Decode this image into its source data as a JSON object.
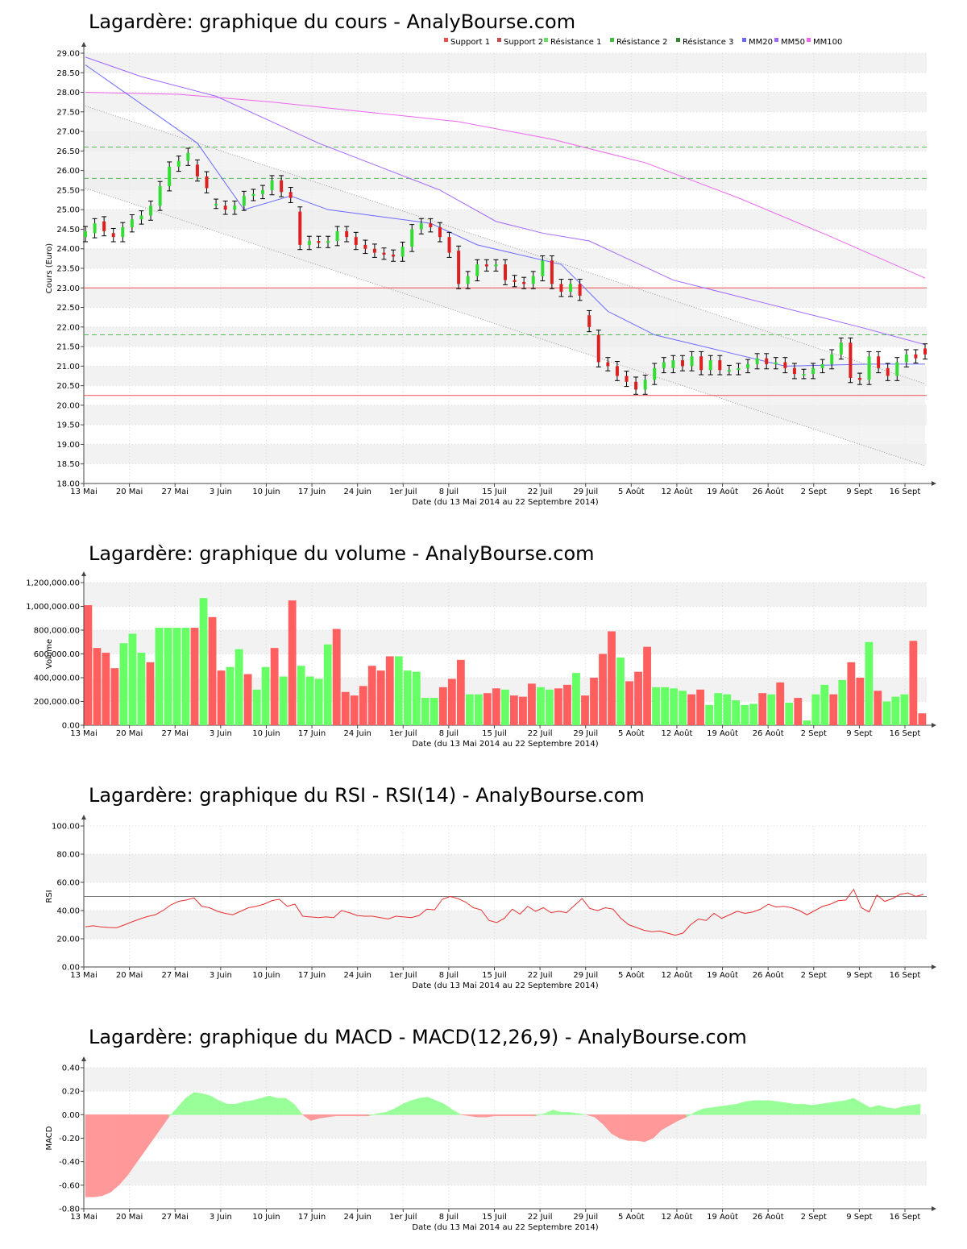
{
  "colors": {
    "up": "#66ff66",
    "down": "#ff5f5f",
    "down_candle": "#e02020",
    "up_candle": "#33dd33",
    "macd_pos": "#99ff99",
    "macd_neg": "#ff9999",
    "mm20": "#6a6aff",
    "mm50": "#a066ff",
    "mm100": "#ee66ee",
    "support": "#e85050",
    "resistance": "#55bb55",
    "rsi_line": "#e83030",
    "band_stripe": "#f2f2f2"
  },
  "x_axis": {
    "ticks": [
      "13 Mai",
      "20 Mai",
      "27 Mai",
      "3 Juin",
      "10 Juin",
      "17 Juin",
      "24 Juin",
      "1er Juil",
      "8 Juil",
      "15 Juil",
      "22 Juil",
      "29 Juil",
      "5 Août",
      "12 Août",
      "19 Août",
      "26 Août",
      "2 Sept",
      "9 Sept",
      "16 Sept"
    ],
    "label": "Date (du 13 Mai 2014 au 22 Septembre 2014)"
  },
  "chart_data": [
    {
      "id": "price",
      "type": "candlestick",
      "title": "Lagardère: graphique du cours - AnalyBourse.com",
      "ylabel": "Cours (Euro)",
      "ylim": [
        18,
        29
      ],
      "yticks": [
        "18.00",
        "18.50",
        "19.00",
        "19.50",
        "20.00",
        "20.50",
        "21.00",
        "21.50",
        "22.00",
        "22.50",
        "23.00",
        "23.50",
        "24.00",
        "24.50",
        "25.00",
        "25.50",
        "26.00",
        "26.50",
        "27.00",
        "27.50",
        "28.00",
        "28.50",
        "29.00"
      ],
      "legend": [
        "Support 1",
        "Support 2",
        "Résistance 1",
        "Résistance 2",
        "Résistance 3",
        "MM20",
        "MM50",
        "MM100"
      ],
      "legend_position": "top-right",
      "support_levels": [
        23.0,
        20.25
      ],
      "resistance_levels": [
        26.6,
        25.8,
        21.8
      ],
      "closes": [
        24.45,
        24.65,
        24.45,
        24.3,
        24.55,
        24.75,
        24.85,
        25.1,
        25.6,
        26.1,
        26.25,
        26.45,
        25.85,
        25.55,
        25.15,
        25.0,
        25.1,
        25.35,
        25.4,
        25.5,
        25.75,
        25.45,
        25.3,
        24.1,
        24.2,
        24.15,
        24.2,
        24.45,
        24.3,
        24.1,
        24.0,
        23.9,
        23.85,
        23.8,
        24.05,
        24.5,
        24.65,
        24.55,
        24.3,
        23.9,
        23.1,
        23.3,
        23.6,
        23.55,
        23.6,
        23.2,
        23.15,
        23.1,
        23.3,
        23.7,
        23.1,
        22.9,
        23.1,
        22.8,
        22.0,
        21.1,
        21.0,
        20.75,
        20.6,
        20.4,
        20.65,
        20.95,
        21.1,
        21.15,
        21.0,
        21.25,
        20.9,
        21.15,
        20.9,
        20.9,
        20.95,
        21.05,
        21.2,
        21.05,
        21.1,
        20.95,
        20.8,
        20.8,
        20.95,
        21.05,
        21.3,
        21.6,
        20.7,
        20.65,
        21.25,
        20.95,
        20.75,
        21.1,
        21.3,
        21.2,
        21.3
      ],
      "opens": [
        24.3,
        24.4,
        24.7,
        24.4,
        24.3,
        24.55,
        24.75,
        24.85,
        25.1,
        25.6,
        26.1,
        26.25,
        26.15,
        25.85,
        25.15,
        25.1,
        25.0,
        25.1,
        25.35,
        25.4,
        25.5,
        25.75,
        25.45,
        24.95,
        24.1,
        24.2,
        24.15,
        24.2,
        24.45,
        24.3,
        24.1,
        24.0,
        23.9,
        23.85,
        23.8,
        24.05,
        24.5,
        24.65,
        24.55,
        24.3,
        23.95,
        23.1,
        23.3,
        23.6,
        23.55,
        23.6,
        23.2,
        23.15,
        23.1,
        23.3,
        23.7,
        23.1,
        22.9,
        23.1,
        22.3,
        21.8,
        21.1,
        21.0,
        20.75,
        20.6,
        20.4,
        20.65,
        20.95,
        20.95,
        21.15,
        21.0,
        21.25,
        20.9,
        21.15,
        20.9,
        20.9,
        20.95,
        21.05,
        21.2,
        21.05,
        21.1,
        20.95,
        20.8,
        20.8,
        20.95,
        21.05,
        21.3,
        21.6,
        20.7,
        20.65,
        21.25,
        20.95,
        20.75,
        21.1,
        21.3,
        21.45
      ],
      "mm20": [
        [
          0,
          28.7
        ],
        [
          12,
          26.7
        ],
        [
          17,
          25.0
        ],
        [
          22,
          25.35
        ],
        [
          26,
          25.0
        ],
        [
          37,
          24.65
        ],
        [
          42,
          24.1
        ],
        [
          51,
          23.6
        ],
        [
          56,
          22.4
        ],
        [
          61,
          21.8
        ],
        [
          68,
          21.4
        ],
        [
          75,
          21.0
        ],
        [
          84,
          21.05
        ],
        [
          90,
          21.05
        ]
      ],
      "mm50": [
        [
          0,
          28.9
        ],
        [
          6,
          28.4
        ],
        [
          14,
          27.9
        ],
        [
          25,
          26.7
        ],
        [
          38,
          25.5
        ],
        [
          44,
          24.7
        ],
        [
          49,
          24.4
        ],
        [
          54,
          24.2
        ],
        [
          63,
          23.2
        ],
        [
          73,
          22.6
        ],
        [
          83,
          22.0
        ],
        [
          90,
          21.55
        ]
      ],
      "mm100": [
        [
          0,
          28.0
        ],
        [
          10,
          27.95
        ],
        [
          20,
          27.75
        ],
        [
          30,
          27.5
        ],
        [
          40,
          27.25
        ],
        [
          50,
          26.8
        ],
        [
          60,
          26.2
        ],
        [
          70,
          25.3
        ],
        [
          80,
          24.3
        ],
        [
          90,
          23.25
        ]
      ],
      "channel_upper": [
        [
          0,
          27.65
        ],
        [
          90,
          20.55
        ]
      ],
      "channel_lower": [
        [
          0,
          25.55
        ],
        [
          90,
          18.45
        ]
      ]
    },
    {
      "id": "volume",
      "type": "bar",
      "title": "Lagardère: graphique du volume - AnalyBourse.com",
      "ylabel": "Volume",
      "ylim": [
        0,
        1200000
      ],
      "yticks": [
        "0.00",
        "200,000.00",
        "400,000.00",
        "600,000.00",
        "800,000.00",
        "1,000,000.00",
        "1,200,000.00"
      ],
      "values": [
        1010000,
        650000,
        610000,
        480000,
        690000,
        770000,
        610000,
        530000,
        820000,
        820000,
        820000,
        820000,
        820000,
        1070000,
        910000,
        460000,
        490000,
        640000,
        430000,
        300000,
        490000,
        650000,
        410000,
        1050000,
        500000,
        410000,
        390000,
        680000,
        810000,
        280000,
        250000,
        330000,
        500000,
        460000,
        580000,
        580000,
        460000,
        450000,
        230000,
        230000,
        320000,
        390000,
        550000,
        260000,
        260000,
        270000,
        310000,
        300000,
        250000,
        240000,
        350000,
        320000,
        300000,
        310000,
        340000,
        440000,
        250000,
        400000,
        600000,
        790000,
        570000,
        370000,
        450000,
        660000,
        320000,
        320000,
        310000,
        290000,
        260000,
        300000,
        170000,
        270000,
        260000,
        210000,
        170000,
        180000,
        270000,
        260000,
        360000,
        190000,
        230000,
        40000,
        260000,
        340000,
        260000,
        380000,
        530000,
        400000,
        700000,
        290000,
        200000,
        240000,
        260000,
        710000,
        100000
      ],
      "up_flags": [
        0,
        0,
        0,
        0,
        1,
        1,
        1,
        0,
        1,
        1,
        1,
        1,
        0,
        1,
        0,
        0,
        1,
        1,
        0,
        1,
        1,
        0,
        1,
        0,
        1,
        1,
        1,
        1,
        0,
        0,
        0,
        0,
        0,
        0,
        0,
        1,
        1,
        1,
        1,
        1,
        0,
        0,
        0,
        1,
        1,
        0,
        0,
        1,
        0,
        0,
        0,
        1,
        1,
        0,
        0,
        1,
        0,
        0,
        0,
        0,
        1,
        0,
        0,
        0,
        1,
        1,
        1,
        1,
        0,
        0,
        1,
        1,
        1,
        1,
        1,
        1,
        0,
        1,
        0,
        1,
        0,
        1,
        1,
        1,
        0,
        1,
        0,
        0,
        1,
        0,
        1,
        1,
        1,
        0,
        0
      ]
    },
    {
      "id": "rsi",
      "type": "line",
      "title": "Lagardère: graphique du RSI - RSI(14) - AnalyBourse.com",
      "ylabel": "RSI",
      "ylim": [
        0,
        100
      ],
      "yticks": [
        "0.00",
        "20.00",
        "40.00",
        "60.00",
        "80.00",
        "100.00"
      ],
      "reference_level": 50,
      "values": [
        28.5,
        29.2,
        28.4,
        28.0,
        27.8,
        29.8,
        32.0,
        34.0,
        35.8,
        37.0,
        40.0,
        44.0,
        46.5,
        47.5,
        49.0,
        43.0,
        42.0,
        39.5,
        38.0,
        37.0,
        39.5,
        42.0,
        43.0,
        44.5,
        47.0,
        48.0,
        43.0,
        44.5,
        36.0,
        35.5,
        35.0,
        35.5,
        35.0,
        40.0,
        38.5,
        36.5,
        36.0,
        36.0,
        35.0,
        34.0,
        36.0,
        35.5,
        35.0,
        36.5,
        41.0,
        40.5,
        48.0,
        50.0,
        48.5,
        46.0,
        42.0,
        40.5,
        33.0,
        31.5,
        34.5,
        41.0,
        37.5,
        43.0,
        39.5,
        42.0,
        38.5,
        39.5,
        38.5,
        43.5,
        48.5,
        41.5,
        40.0,
        42.0,
        41.0,
        34.5,
        30.0,
        28.0,
        26.0,
        25.0,
        25.5,
        24.0,
        22.5,
        24.0,
        30.0,
        34.0,
        33.0,
        38.0,
        34.5,
        37.0,
        39.5,
        38.0,
        39.0,
        41.0,
        44.5,
        42.5,
        43.0,
        42.0,
        40.0,
        37.0,
        40.0,
        43.0,
        44.5,
        47.0,
        47.5,
        55.0,
        42.0,
        39.0,
        51.0,
        46.5,
        48.5,
        51.5,
        52.5,
        50.0,
        51.5
      ]
    },
    {
      "id": "macd",
      "type": "area",
      "title": "Lagardère: graphique du MACD - MACD(12,26,9) - AnalyBourse.com",
      "ylabel": "MACD",
      "ylim": [
        -0.8,
        0.4
      ],
      "yticks": [
        "-0.80",
        "-0.60",
        "-0.40",
        "-0.20",
        "0.00",
        "0.20",
        "0.40"
      ],
      "values": [
        -0.7,
        -0.7,
        -0.69,
        -0.66,
        -0.6,
        -0.52,
        -0.42,
        -0.32,
        -0.22,
        -0.12,
        -0.02,
        0.06,
        0.14,
        0.19,
        0.18,
        0.16,
        0.12,
        0.09,
        0.09,
        0.11,
        0.12,
        0.14,
        0.16,
        0.14,
        0.14,
        0.09,
        0.0,
        -0.05,
        -0.03,
        -0.02,
        -0.01,
        -0.01,
        -0.01,
        -0.01,
        -0.01,
        0.01,
        0.02,
        0.05,
        0.09,
        0.12,
        0.14,
        0.15,
        0.12,
        0.09,
        0.04,
        0.0,
        -0.01,
        -0.02,
        -0.02,
        -0.01,
        -0.01,
        -0.01,
        -0.01,
        -0.01,
        -0.01,
        0.01,
        0.04,
        0.02,
        0.02,
        0.01,
        0.0,
        -0.02,
        -0.08,
        -0.16,
        -0.2,
        -0.22,
        -0.22,
        -0.23,
        -0.2,
        -0.13,
        -0.09,
        -0.05,
        -0.02,
        0.02,
        0.05,
        0.06,
        0.07,
        0.08,
        0.09,
        0.11,
        0.12,
        0.12,
        0.12,
        0.11,
        0.1,
        0.09,
        0.09,
        0.08,
        0.09,
        0.1,
        0.11,
        0.12,
        0.14,
        0.1,
        0.06,
        0.08,
        0.06,
        0.05,
        0.07,
        0.08,
        0.09
      ]
    }
  ]
}
